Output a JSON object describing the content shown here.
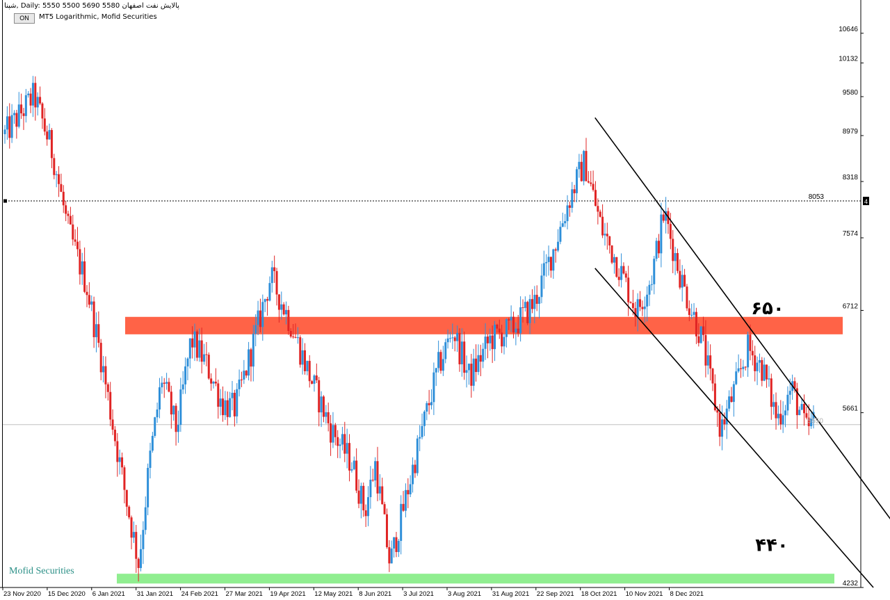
{
  "header": {
    "symbol_line": "شپنا, Daily:  5550 5500 5690 5580  پالایش نفت اصفهان",
    "on_button": "ON",
    "subtitle": "MT5 Logarithmic, Mofid Securities"
  },
  "watermark": "Mofid Securities",
  "colors": {
    "bull": "#2e8fd9",
    "bear": "#e02424",
    "resistance_zone": "#ff6347",
    "support_zone": "#90ee90",
    "trend_lines": "#000000"
  },
  "chart_data": {
    "type": "candlestick",
    "scale": "logarithmic",
    "ylim": [
      4232,
      11200
    ],
    "y_ticks": [
      10646,
      10132,
      9580,
      8979,
      8318,
      7574,
      6712,
      5661,
      4232
    ],
    "x_ticks": [
      "23 Nov 2020",
      "15 Dec 2020",
      "6 Jan 2021",
      "31 Jan 2021",
      "24 Feb 2021",
      "27 Mar 2021",
      "19 Apr 2021",
      "12 May 2021",
      "8 Jun 2021",
      "3 Jul 2021",
      "3 Aug 2021",
      "31 Aug 2021",
      "22 Sep 2021",
      "18 Oct 2021",
      "10 Nov 2021",
      "8 Dec 2021"
    ],
    "reference_level": {
      "value": 8053,
      "label": "8053",
      "badge": "4"
    },
    "current_price": {
      "value": 5550,
      "label": "5550"
    },
    "zones": [
      {
        "name": "resistance",
        "low": 6450,
        "high": 6640
      },
      {
        "name": "support",
        "low": 4260,
        "high": 4330
      }
    ],
    "annotations": [
      {
        "text": "۶۵۰",
        "near_value": 6730
      },
      {
        "text": "۴۴۰",
        "near_value": 4540
      }
    ],
    "trend_lines": [
      {
        "name": "upper-channel",
        "from": {
          "date": "2021-08-24",
          "value": 9250
        },
        "to": {
          "date": "2022-01-20",
          "value": 4570
        }
      },
      {
        "name": "lower-channel",
        "from": {
          "date": "2021-08-24",
          "value": 7200
        },
        "to": {
          "date": "2022-01-04",
          "value": 4232
        }
      }
    ],
    "anchors": [
      {
        "date": "2020-11-15",
        "value": 9000
      },
      {
        "date": "2020-11-29",
        "value": 9600
      },
      {
        "date": "2020-12-08",
        "value": 8700
      },
      {
        "date": "2020-12-15",
        "value": 7700
      },
      {
        "date": "2020-12-24",
        "value": 7000
      },
      {
        "date": "2020-12-31",
        "value": 6200
      },
      {
        "date": "2021-01-06",
        "value": 5500
      },
      {
        "date": "2021-01-12",
        "value": 4900
      },
      {
        "date": "2021-01-18",
        "value": 4400
      },
      {
        "date": "2021-01-23",
        "value": 5200
      },
      {
        "date": "2021-01-29",
        "value": 6000
      },
      {
        "date": "2021-02-05",
        "value": 5500
      },
      {
        "date": "2021-02-12",
        "value": 6400
      },
      {
        "date": "2021-02-19",
        "value": 6150
      },
      {
        "date": "2021-02-27",
        "value": 5750
      },
      {
        "date": "2021-03-05",
        "value": 5700
      },
      {
        "date": "2021-03-13",
        "value": 6300
      },
      {
        "date": "2021-03-22",
        "value": 7100
      },
      {
        "date": "2021-03-31",
        "value": 6600
      },
      {
        "date": "2021-04-10",
        "value": 6000
      },
      {
        "date": "2021-04-20",
        "value": 5500
      },
      {
        "date": "2021-04-30",
        "value": 5200
      },
      {
        "date": "2021-05-06",
        "value": 4800
      },
      {
        "date": "2021-05-11",
        "value": 5200
      },
      {
        "date": "2021-05-18",
        "value": 4400
      },
      {
        "date": "2021-05-24",
        "value": 4800
      },
      {
        "date": "2021-06-01",
        "value": 5400
      },
      {
        "date": "2021-06-10",
        "value": 6100
      },
      {
        "date": "2021-06-17",
        "value": 6500
      },
      {
        "date": "2021-06-25",
        "value": 6000
      },
      {
        "date": "2021-07-05",
        "value": 6400
      },
      {
        "date": "2021-07-15",
        "value": 6500
      },
      {
        "date": "2021-07-26",
        "value": 6800
      },
      {
        "date": "2021-08-05",
        "value": 7500
      },
      {
        "date": "2021-08-12",
        "value": 8100
      },
      {
        "date": "2021-08-19",
        "value": 8600
      },
      {
        "date": "2021-08-27",
        "value": 7700
      },
      {
        "date": "2021-09-03",
        "value": 7300
      },
      {
        "date": "2021-09-13",
        "value": 6700
      },
      {
        "date": "2021-09-20",
        "value": 7100
      },
      {
        "date": "2021-09-26",
        "value": 7900
      },
      {
        "date": "2021-10-05",
        "value": 7000
      },
      {
        "date": "2021-10-14",
        "value": 6400
      },
      {
        "date": "2021-10-23",
        "value": 5500
      },
      {
        "date": "2021-10-30",
        "value": 5900
      },
      {
        "date": "2021-11-05",
        "value": 6300
      },
      {
        "date": "2021-11-12",
        "value": 6100
      },
      {
        "date": "2021-11-19",
        "value": 5600
      },
      {
        "date": "2021-11-26",
        "value": 5900
      },
      {
        "date": "2021-12-03",
        "value": 5500
      },
      {
        "date": "2021-12-07",
        "value": 5580
      }
    ],
    "x_range": [
      "2020-11-14",
      "2021-12-29"
    ]
  }
}
